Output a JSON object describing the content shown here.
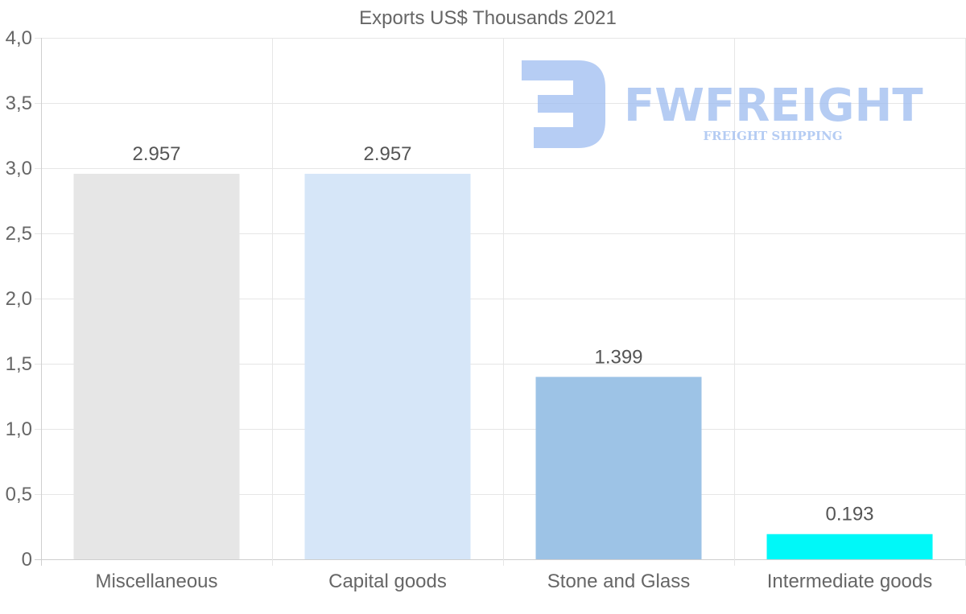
{
  "chart_data": {
    "type": "bar",
    "title": "Exports US$ Thousands 2021",
    "categories": [
      "Miscellaneous",
      "Capital goods",
      "Stone and Glass",
      "Intermediate goods"
    ],
    "values": [
      2.957,
      2.957,
      1.399,
      0.193
    ],
    "value_labels": [
      "2.957",
      "2.957",
      "1.399",
      "0.193"
    ],
    "colors": [
      "#e6e6e6",
      "#d6e6f8",
      "#9dc3e6",
      "#00f8f8"
    ],
    "ylim": [
      0,
      4
    ],
    "yticks": [
      0,
      0.5,
      1,
      1.5,
      2,
      2.5,
      3,
      3.5,
      4
    ],
    "ytick_labels": [
      "0",
      "0,5",
      "1,0",
      "1,5",
      "2,0",
      "2,5",
      "3,0",
      "3,5",
      "4,0"
    ],
    "xlabel": "",
    "ylabel": "",
    "grid": true
  },
  "watermark": {
    "brand": "FWFREIGHT",
    "tagline": "FREIGHT SHIPPING",
    "color": "#9dbcf0"
  }
}
